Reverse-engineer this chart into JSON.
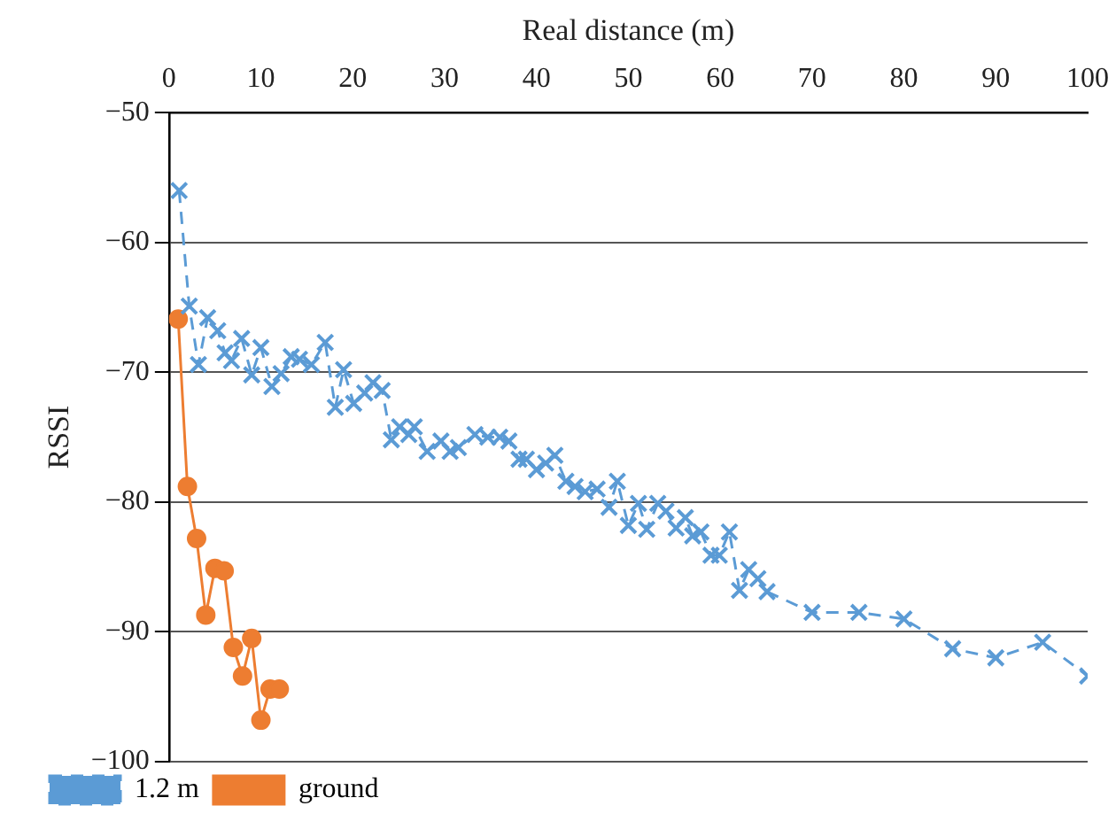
{
  "chart_data": {
    "type": "line",
    "xlabel": "Real distance (m)",
    "ylabel": "RSSI",
    "xlim": [
      0,
      100
    ],
    "xticks": [
      0,
      10,
      20,
      30,
      40,
      50,
      60,
      70,
      80,
      90,
      100
    ],
    "ylim": [
      -100,
      -50
    ],
    "yticks": [
      -100,
      -90,
      -80,
      -70,
      -60,
      -50
    ],
    "grid": "y",
    "legend": "bottom left",
    "series": [
      {
        "name": "1.2 m",
        "color": "#5b9bd5",
        "marker": "cross",
        "line_style": "dashed",
        "x": [
          1.1,
          2.2,
          3.2,
          4.2,
          5.3,
          6.1,
          6.8,
          7.9,
          9,
          10,
          11.2,
          12.2,
          13.3,
          14.2,
          15.5,
          17,
          18.1,
          19,
          20.1,
          21.3,
          22.2,
          23.2,
          24.2,
          25.1,
          26.1,
          26.7,
          28.1,
          29.6,
          30.6,
          31.5,
          33.3,
          34.7,
          36,
          37,
          38.1,
          38.9,
          40,
          41,
          42,
          43.2,
          44.2,
          45.3,
          46.6,
          47.9,
          48.8,
          50,
          51.1,
          52,
          53.2,
          54.1,
          55.2,
          56.2,
          57,
          57.9,
          59,
          59.9,
          61,
          62.1,
          63.1,
          64.1,
          65.1,
          70,
          75.1,
          80,
          85.3,
          90,
          95.1,
          100
        ],
        "values": [
          -56,
          -64.9,
          -69.4,
          -65.8,
          -66.8,
          -68.5,
          -69.1,
          -67.4,
          -70.2,
          -68.1,
          -71.1,
          -70.1,
          -68.8,
          -69,
          -69.4,
          -67.7,
          -72.7,
          -69.8,
          -72.4,
          -71.6,
          -70.8,
          -71.4,
          -75.2,
          -74.2,
          -74.8,
          -74.2,
          -76.1,
          -75.3,
          -76.1,
          -75.8,
          -74.8,
          -75,
          -75,
          -75.3,
          -76.7,
          -76.7,
          -77.5,
          -77,
          -76.4,
          -78.4,
          -78.8,
          -79.2,
          -79,
          -80.4,
          -78.4,
          -81.8,
          -80.1,
          -82.1,
          -80.1,
          -80.7,
          -82,
          -81.2,
          -82.6,
          -82.3,
          -84.1,
          -84.1,
          -82.3,
          -86.8,
          -85.2,
          -85.9,
          -86.9,
          -88.5,
          -88.5,
          -89,
          -91.3,
          -92,
          -90.8,
          -93.4
        ]
      },
      {
        "name": "ground",
        "color": "#ed7d31",
        "marker": "circle",
        "line_style": "solid",
        "x": [
          1,
          2,
          3,
          4,
          5,
          6,
          7,
          8,
          9,
          10,
          11,
          12
        ],
        "values": [
          -65.9,
          -78.8,
          -82.8,
          -88.7,
          -85.1,
          -85.3,
          -91.2,
          -93.4,
          -90.5,
          -96.8,
          -94.4,
          -94.4
        ]
      }
    ]
  }
}
